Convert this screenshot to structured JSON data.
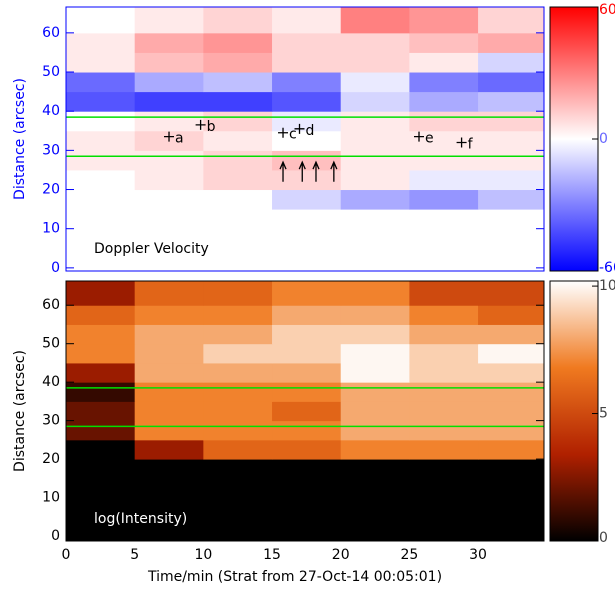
{
  "chart_data": [
    {
      "type": "heatmap",
      "annotation": "Doppler Velocity",
      "ylabel": "Distance (arcsec)",
      "axis_color": "#0000ff",
      "x_bins": [
        0,
        5,
        10,
        15,
        20,
        25,
        30,
        35
      ],
      "y_bins": [
        0,
        5,
        10,
        15,
        20,
        25,
        30,
        35,
        40,
        45,
        50,
        55,
        60,
        67
      ],
      "z": [
        [
          0,
          0,
          0,
          0,
          0,
          0,
          0
        ],
        [
          0,
          0,
          0,
          0,
          0,
          0,
          0
        ],
        [
          0,
          0,
          0,
          0,
          0,
          0,
          0
        ],
        [
          0,
          0,
          0,
          -10,
          -20,
          -25,
          -15
        ],
        [
          0,
          5,
          10,
          10,
          5,
          -5,
          -5
        ],
        [
          5,
          5,
          10,
          15,
          5,
          5,
          5
        ],
        [
          5,
          10,
          5,
          0,
          5,
          5,
          5
        ],
        [
          0,
          5,
          10,
          -5,
          5,
          10,
          10
        ],
        [
          -40,
          -45,
          -45,
          -40,
          -10,
          -20,
          -15
        ],
        [
          -35,
          -20,
          -15,
          -30,
          -5,
          -30,
          -35
        ],
        [
          5,
          15,
          20,
          10,
          10,
          5,
          -10
        ],
        [
          5,
          20,
          25,
          10,
          10,
          15,
          20
        ],
        [
          0,
          5,
          10,
          5,
          30,
          25,
          10
        ]
      ],
      "colormap": [
        "#0000ff",
        "#ffffff",
        "#ff0000"
      ],
      "zlim": [
        -60,
        60
      ],
      "zticks": [
        60,
        0,
        -60
      ],
      "xlim": [
        0,
        34.8
      ],
      "ylim": [
        -0.8,
        66.6
      ],
      "yticks": [
        0,
        10,
        20,
        30,
        40,
        50,
        60
      ],
      "hlines": [
        38.5,
        28.5
      ],
      "hline_color": "#00e000",
      "points": [
        {
          "label": "a",
          "x": 7.5,
          "y": 33.5
        },
        {
          "label": "b",
          "x": 9.8,
          "y": 36.5
        },
        {
          "label": "c",
          "x": 15.8,
          "y": 34.5
        },
        {
          "label": "d",
          "x": 17.0,
          "y": 35.5
        },
        {
          "label": "e",
          "x": 25.7,
          "y": 33.5
        },
        {
          "label": "f",
          "x": 28.8,
          "y": 32.0
        }
      ],
      "arrows": [
        {
          "x": 15.8,
          "y": [
            22,
            27
          ]
        },
        {
          "x": 17.2,
          "y": [
            22,
            27
          ]
        },
        {
          "x": 18.2,
          "y": [
            22,
            27
          ]
        },
        {
          "x": 19.5,
          "y": [
            22,
            27
          ]
        }
      ]
    },
    {
      "type": "heatmap",
      "annotation": "log(Intensity)",
      "ylabel": "Distance (arcsec)",
      "axis_color": "#000000",
      "xlabel": "Time/min (Strat from 27-Oct-14 00:05:01)",
      "x_bins": [
        0,
        5,
        10,
        15,
        20,
        25,
        30,
        35
      ],
      "y_bins": [
        0,
        5,
        10,
        15,
        20,
        25,
        30,
        35,
        40,
        45,
        50,
        55,
        60,
        67
      ],
      "z": [
        [
          0,
          0,
          0,
          0,
          0,
          0,
          0
        ],
        [
          0,
          0,
          0,
          0,
          0,
          0,
          0
        ],
        [
          0,
          0,
          0,
          0,
          0,
          0,
          0
        ],
        [
          0,
          0,
          0,
          0,
          0,
          0,
          0
        ],
        [
          0,
          3,
          6,
          6,
          7,
          7,
          7
        ],
        [
          2,
          7,
          7,
          7,
          8,
          8,
          8
        ],
        [
          2,
          7,
          7,
          6,
          8,
          8,
          8
        ],
        [
          1,
          7,
          7,
          7,
          8,
          8,
          8
        ],
        [
          3,
          8,
          8,
          8,
          10,
          9,
          9
        ],
        [
          7,
          8,
          9,
          9,
          10,
          9,
          10
        ],
        [
          7,
          8,
          8,
          9,
          9,
          8,
          8
        ],
        [
          6,
          7,
          7,
          8,
          8,
          7,
          6
        ],
        [
          3,
          6,
          6,
          7,
          7,
          5,
          5
        ]
      ],
      "colormap": [
        "#000000",
        "#b02000",
        "#f07a20",
        "#ffffff"
      ],
      "zlim": [
        0,
        10.2
      ],
      "zticks": [
        10,
        5,
        0
      ],
      "xlim": [
        0,
        34.8
      ],
      "ylim": [
        -1.3,
        66.3
      ],
      "yticks": [
        0,
        10,
        20,
        30,
        40,
        50,
        60
      ],
      "xticks": [
        0,
        5,
        10,
        15,
        20,
        25,
        30
      ],
      "hlines": [
        38.5,
        28.5
      ],
      "hline_color": "#00e000"
    }
  ]
}
